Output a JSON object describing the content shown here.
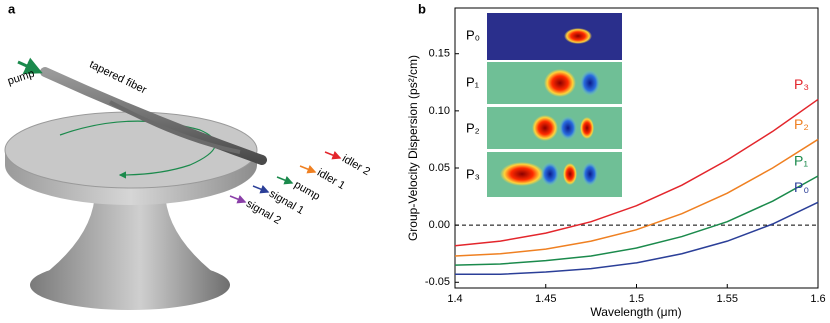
{
  "diagram": {
    "panel_label": "a",
    "pump_in": "pump",
    "fiber": "tapered fiber",
    "outputs": [
      "idler 2",
      "idler 1",
      "pump",
      "signal 1",
      "signal 2"
    ]
  },
  "chart_data": {
    "type": "line",
    "panel_label": "b",
    "x_label": "Wavelength (μm)",
    "y_label": "Group-Velocity Dispersion (ps²/cm)",
    "x": [
      1.4,
      1.425,
      1.45,
      1.475,
      1.5,
      1.525,
      1.55,
      1.575,
      1.6
    ],
    "series": [
      {
        "name": "P₃",
        "color": "#e3262c",
        "values": [
          -0.018,
          -0.014,
          -0.007,
          0.003,
          0.017,
          0.035,
          0.057,
          0.082,
          0.11
        ]
      },
      {
        "name": "P₂",
        "color": "#ef8022",
        "values": [
          -0.027,
          -0.025,
          -0.021,
          -0.014,
          -0.004,
          0.01,
          0.028,
          0.05,
          0.075
        ]
      },
      {
        "name": "P₁",
        "color": "#1b8a4c",
        "values": [
          -0.035,
          -0.034,
          -0.031,
          -0.027,
          -0.02,
          -0.01,
          0.003,
          0.021,
          0.043
        ]
      },
      {
        "name": "P₀",
        "color": "#2b3f98",
        "values": [
          -0.043,
          -0.043,
          -0.041,
          -0.038,
          -0.033,
          -0.025,
          -0.014,
          0.001,
          0.02
        ]
      }
    ],
    "xlim": [
      1.4,
      1.6
    ],
    "xticks": [
      1.4,
      1.45,
      1.5,
      1.55,
      1.6
    ],
    "ylim": [
      -0.055,
      0.19
    ],
    "yticks": [
      -0.05,
      {
        "value": 0,
        "label": "0.00"
      },
      0.05,
      {
        "value": 0.1,
        "label": "0.10"
      },
      0.15
    ],
    "zero_line": true
  }
}
